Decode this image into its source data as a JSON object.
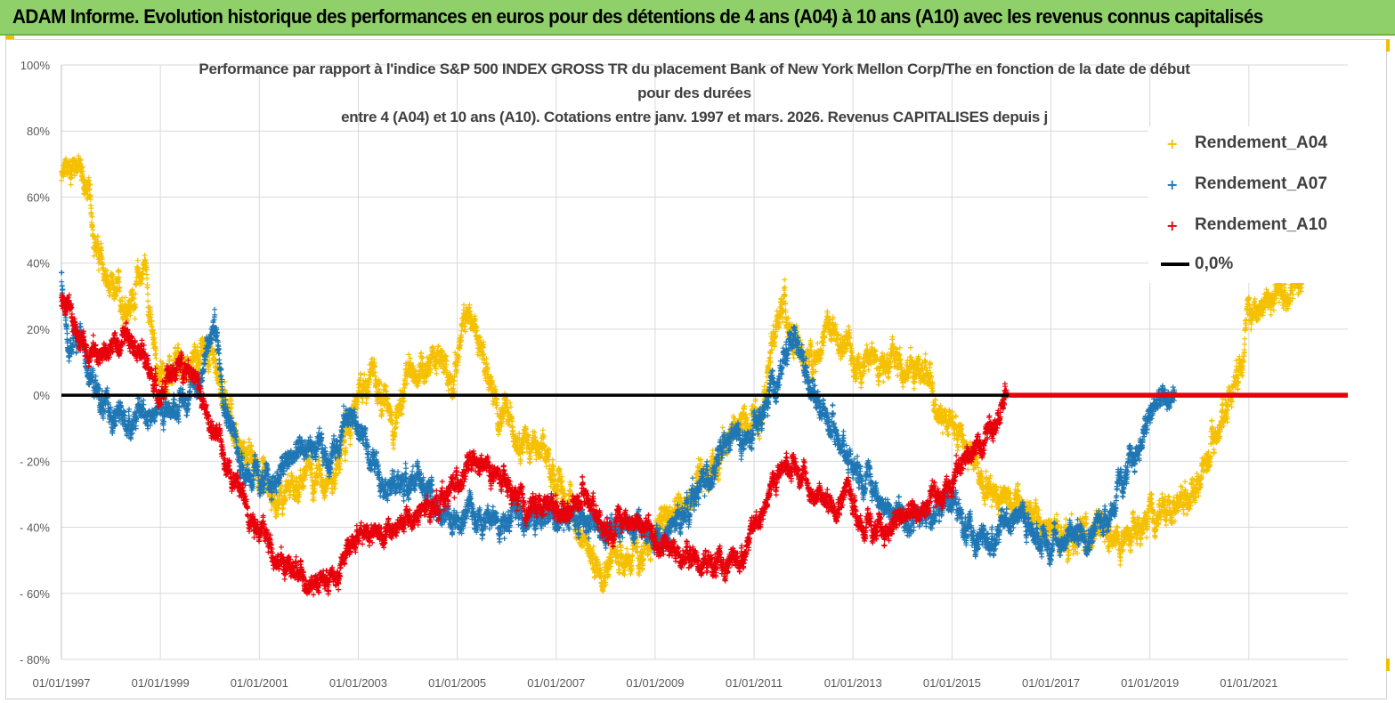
{
  "banner": {
    "title": "ADAM Informe. Evolution historique des performances en euros pour des détentions de 4 ans (A04) à 10 ans (A10) avec les revenus connus capitalisés"
  },
  "chart_data": {
    "type": "scatter",
    "title_lines": [
      "Performance par rapport à l'indice S&P 500 INDEX GROSS TR  du placement Bank of New York Mellon Corp/The en fonction de la date de début",
      "pour des durées",
      "entre 4 (A04) et 10 ans (A10). Cotations entre janv. 1997 et mars. 2026. Revenus CAPITALISES depuis j"
    ],
    "x_axis": {
      "start_year": 1997.0,
      "end_year": 2023.0,
      "tick_labels": [
        "01/01/1997",
        "01/01/1999",
        "01/01/2001",
        "01/01/2003",
        "01/01/2005",
        "01/01/2007",
        "01/01/2009",
        "01/01/2011",
        "01/01/2013",
        "01/01/2015",
        "01/01/2017",
        "01/01/2019",
        "01/01/2021"
      ]
    },
    "y_axis": {
      "min": -80,
      "max": 100,
      "step": 20,
      "tick_labels": [
        "100%",
        "80%",
        "60%",
        "40%",
        "20%",
        "0%",
        "- 20%",
        "- 40%",
        "- 60%",
        "- 80%"
      ]
    },
    "grid": true,
    "legend_position": "top-right",
    "series": [
      {
        "name": "Rendement_A04",
        "color": "#f5c000",
        "anchors": [
          [
            1997.0,
            65
          ],
          [
            1997.3,
            72
          ],
          [
            1997.55,
            60
          ],
          [
            1997.75,
            42
          ],
          [
            1998.0,
            30
          ],
          [
            1998.4,
            28
          ],
          [
            1998.7,
            40
          ],
          [
            1998.85,
            15
          ],
          [
            1999.0,
            5
          ],
          [
            1999.5,
            8
          ],
          [
            2000.0,
            15
          ],
          [
            2000.3,
            0
          ],
          [
            2000.6,
            -15
          ],
          [
            2001.0,
            -25
          ],
          [
            2001.3,
            -35
          ],
          [
            2001.6,
            -30
          ],
          [
            2002.0,
            -22
          ],
          [
            2002.5,
            -25
          ],
          [
            2002.8,
            -10
          ],
          [
            2003.0,
            -2
          ],
          [
            2003.3,
            10
          ],
          [
            2003.7,
            -10
          ],
          [
            2004.0,
            5
          ],
          [
            2004.5,
            12
          ],
          [
            2004.9,
            5
          ],
          [
            2005.2,
            25
          ],
          [
            2005.5,
            15
          ],
          [
            2005.8,
            -5
          ],
          [
            2006.2,
            -10
          ],
          [
            2006.8,
            -20
          ],
          [
            2007.2,
            -30
          ],
          [
            2007.5,
            -42
          ],
          [
            2007.8,
            -52
          ],
          [
            2008.3,
            -48
          ],
          [
            2008.8,
            -50
          ],
          [
            2009.0,
            -40
          ],
          [
            2009.5,
            -35
          ],
          [
            2009.8,
            -30
          ],
          [
            2010.2,
            -20
          ],
          [
            2010.6,
            -10
          ],
          [
            2010.9,
            -8
          ],
          [
            2011.1,
            -5
          ],
          [
            2011.3,
            10
          ],
          [
            2011.6,
            30
          ],
          [
            2011.8,
            15
          ],
          [
            2012.1,
            10
          ],
          [
            2012.5,
            20
          ],
          [
            2012.8,
            15
          ],
          [
            2013.1,
            10
          ],
          [
            2013.6,
            12
          ],
          [
            2014.0,
            10
          ],
          [
            2014.5,
            5
          ],
          [
            2014.8,
            -5
          ],
          [
            2015.1,
            -10
          ],
          [
            2015.4,
            -20
          ],
          [
            2015.8,
            -28
          ],
          [
            2016.1,
            -30
          ],
          [
            2016.5,
            -35
          ],
          [
            2017.0,
            -42
          ],
          [
            2017.5,
            -43
          ],
          [
            2017.9,
            -40
          ],
          [
            2018.2,
            -45
          ],
          [
            2018.6,
            -44
          ],
          [
            2019.0,
            -38
          ],
          [
            2019.5,
            -33
          ],
          [
            2019.9,
            -28
          ],
          [
            2020.2,
            -18
          ],
          [
            2020.5,
            -5
          ],
          [
            2020.8,
            10
          ],
          [
            2021.0,
            25
          ],
          [
            2021.3,
            28
          ],
          [
            2021.6,
            30
          ],
          [
            2021.9,
            33
          ],
          [
            2022.1,
            34
          ]
        ],
        "spread": 4
      },
      {
        "name": "Rendement_A07",
        "color": "#1f77b4",
        "anchors": [
          [
            1997.0,
            35
          ],
          [
            1997.15,
            15
          ],
          [
            1997.4,
            18
          ],
          [
            1997.6,
            5
          ],
          [
            1997.9,
            -5
          ],
          [
            1998.3,
            -8
          ],
          [
            1998.7,
            -5
          ],
          [
            1999.0,
            -5
          ],
          [
            1999.4,
            -2
          ],
          [
            1999.8,
            5
          ],
          [
            2000.1,
            22
          ],
          [
            2000.3,
            0
          ],
          [
            2000.6,
            -20
          ],
          [
            2000.9,
            -25
          ],
          [
            2001.2,
            -28
          ],
          [
            2001.6,
            -20
          ],
          [
            2002.0,
            -15
          ],
          [
            2002.4,
            -20
          ],
          [
            2002.8,
            -5
          ],
          [
            2003.0,
            -10
          ],
          [
            2003.3,
            -20
          ],
          [
            2003.7,
            -28
          ],
          [
            2004.1,
            -25
          ],
          [
            2004.5,
            -30
          ],
          [
            2004.9,
            -40
          ],
          [
            2005.3,
            -35
          ],
          [
            2005.7,
            -38
          ],
          [
            2006.2,
            -35
          ],
          [
            2006.7,
            -38
          ],
          [
            2007.1,
            -35
          ],
          [
            2007.5,
            -38
          ],
          [
            2007.9,
            -40
          ],
          [
            2008.3,
            -38
          ],
          [
            2008.7,
            -40
          ],
          [
            2009.0,
            -45
          ],
          [
            2009.4,
            -40
          ],
          [
            2009.8,
            -30
          ],
          [
            2010.2,
            -22
          ],
          [
            2010.6,
            -12
          ],
          [
            2010.9,
            -15
          ],
          [
            2011.2,
            -5
          ],
          [
            2011.5,
            5
          ],
          [
            2011.8,
            20
          ],
          [
            2012.1,
            5
          ],
          [
            2012.5,
            -8
          ],
          [
            2012.9,
            -18
          ],
          [
            2013.3,
            -25
          ],
          [
            2013.7,
            -35
          ],
          [
            2014.2,
            -38
          ],
          [
            2014.7,
            -35
          ],
          [
            2015.0,
            -30
          ],
          [
            2015.3,
            -42
          ],
          [
            2015.7,
            -45
          ],
          [
            2016.0,
            -40
          ],
          [
            2016.3,
            -35
          ],
          [
            2016.7,
            -42
          ],
          [
            2017.0,
            -45
          ],
          [
            2017.5,
            -42
          ],
          [
            2017.9,
            -40
          ],
          [
            2018.2,
            -35
          ],
          [
            2018.5,
            -25
          ],
          [
            2018.8,
            -15
          ],
          [
            2019.1,
            -3
          ],
          [
            2019.5,
            0
          ]
        ],
        "spread": 3.5
      },
      {
        "name": "Rendement_A10",
        "color": "#e8000b",
        "anchors": [
          [
            1997.0,
            30
          ],
          [
            1997.2,
            22
          ],
          [
            1997.5,
            15
          ],
          [
            1997.8,
            12
          ],
          [
            1998.1,
            15
          ],
          [
            1998.4,
            20
          ],
          [
            1998.7,
            10
          ],
          [
            1999.0,
            0
          ],
          [
            1999.3,
            8
          ],
          [
            1999.6,
            10
          ],
          [
            1999.9,
            -5
          ],
          [
            2000.2,
            -15
          ],
          [
            2000.5,
            -25
          ],
          [
            2000.8,
            -35
          ],
          [
            2001.1,
            -42
          ],
          [
            2001.4,
            -50
          ],
          [
            2001.8,
            -55
          ],
          [
            2002.2,
            -56
          ],
          [
            2002.6,
            -55
          ],
          [
            2002.9,
            -42
          ],
          [
            2003.2,
            -40
          ],
          [
            2003.6,
            -42
          ],
          [
            2004.0,
            -38
          ],
          [
            2004.4,
            -35
          ],
          [
            2004.8,
            -30
          ],
          [
            2005.2,
            -22
          ],
          [
            2005.6,
            -22
          ],
          [
            2006.0,
            -28
          ],
          [
            2006.4,
            -35
          ],
          [
            2006.8,
            -32
          ],
          [
            2007.2,
            -35
          ],
          [
            2007.6,
            -30
          ],
          [
            2008.0,
            -40
          ],
          [
            2008.4,
            -37
          ],
          [
            2008.8,
            -40
          ],
          [
            2009.1,
            -45
          ],
          [
            2009.5,
            -48
          ],
          [
            2009.9,
            -50
          ],
          [
            2010.3,
            -52
          ],
          [
            2010.7,
            -50
          ],
          [
            2011.0,
            -40
          ],
          [
            2011.3,
            -30
          ],
          [
            2011.6,
            -20
          ],
          [
            2011.9,
            -22
          ],
          [
            2012.2,
            -30
          ],
          [
            2012.6,
            -33
          ],
          [
            2012.9,
            -28
          ],
          [
            2013.2,
            -40
          ],
          [
            2013.6,
            -42
          ],
          [
            2014.0,
            -37
          ],
          [
            2014.4,
            -35
          ],
          [
            2014.8,
            -30
          ],
          [
            2015.2,
            -20
          ],
          [
            2015.6,
            -15
          ],
          [
            2015.9,
            -5
          ],
          [
            2016.1,
            0
          ]
        ],
        "spread": 3
      }
    ],
    "zero_line": {
      "name": "0,0%",
      "color": "#000000",
      "value": 0
    },
    "flat_segment": {
      "series": "Rendement_A10",
      "x_start": 2016.15,
      "x_end": 2023.0,
      "value": 0
    }
  }
}
